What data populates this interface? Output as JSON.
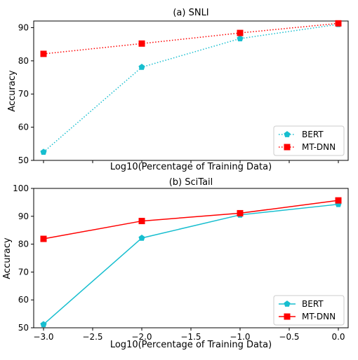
{
  "chart_data": [
    {
      "type": "line",
      "title": "(a) SNLI",
      "xlabel": "Log10(Percentage of Training Data)",
      "ylabel": "Accuracy",
      "xlim": [
        -3.1,
        0.1
      ],
      "ylim": [
        50,
        92
      ],
      "xticks": [
        -3.0,
        -2.5,
        -2.0,
        -1.5,
        -1.0,
        -0.5,
        0.0
      ],
      "xtick_labels_visible": false,
      "yticks": [
        50,
        60,
        70,
        80,
        90
      ],
      "ytick_labels": [
        "50",
        "60",
        "70",
        "80",
        "90"
      ],
      "line_style": "dotted",
      "legend_placement": "lower-right",
      "grid": false,
      "x": [
        -3.0,
        -2.0,
        -1.0,
        0.0
      ],
      "series": [
        {
          "name": "BERT",
          "color": "#17becf",
          "marker": "pentagon",
          "values": [
            52.5,
            78.1,
            86.7,
            91.0
          ]
        },
        {
          "name": "MT-DNN",
          "color": "#ff0000",
          "marker": "square",
          "values": [
            82.1,
            85.2,
            88.4,
            91.3
          ]
        }
      ]
    },
    {
      "type": "line",
      "title": "(b) SciTail",
      "xlabel": "Log10(Percentage of Training Data)",
      "ylabel": "Accuracy",
      "xlim": [
        -3.1,
        0.1
      ],
      "ylim": [
        50,
        100
      ],
      "xticks": [
        -3.0,
        -2.5,
        -2.0,
        -1.5,
        -1.0,
        -0.5,
        0.0
      ],
      "xtick_labels_visible": true,
      "xtick_labels": [
        "−3.0",
        "−2.5",
        "−2.0",
        "−1.5",
        "−1.0",
        "−0.5",
        "0.0"
      ],
      "yticks": [
        50,
        60,
        70,
        80,
        90,
        100
      ],
      "ytick_labels": [
        "50",
        "60",
        "70",
        "80",
        "90",
        "100"
      ],
      "line_style": "solid",
      "legend_placement": "lower-right",
      "grid": false,
      "x": [
        -3.0,
        -2.0,
        -1.0,
        0.0
      ],
      "series": [
        {
          "name": "BERT",
          "color": "#17becf",
          "marker": "pentagon",
          "values": [
            51.2,
            82.2,
            90.5,
            94.3
          ]
        },
        {
          "name": "MT-DNN",
          "color": "#ff0000",
          "marker": "square",
          "values": [
            81.9,
            88.3,
            91.1,
            95.7
          ]
        }
      ]
    }
  ]
}
